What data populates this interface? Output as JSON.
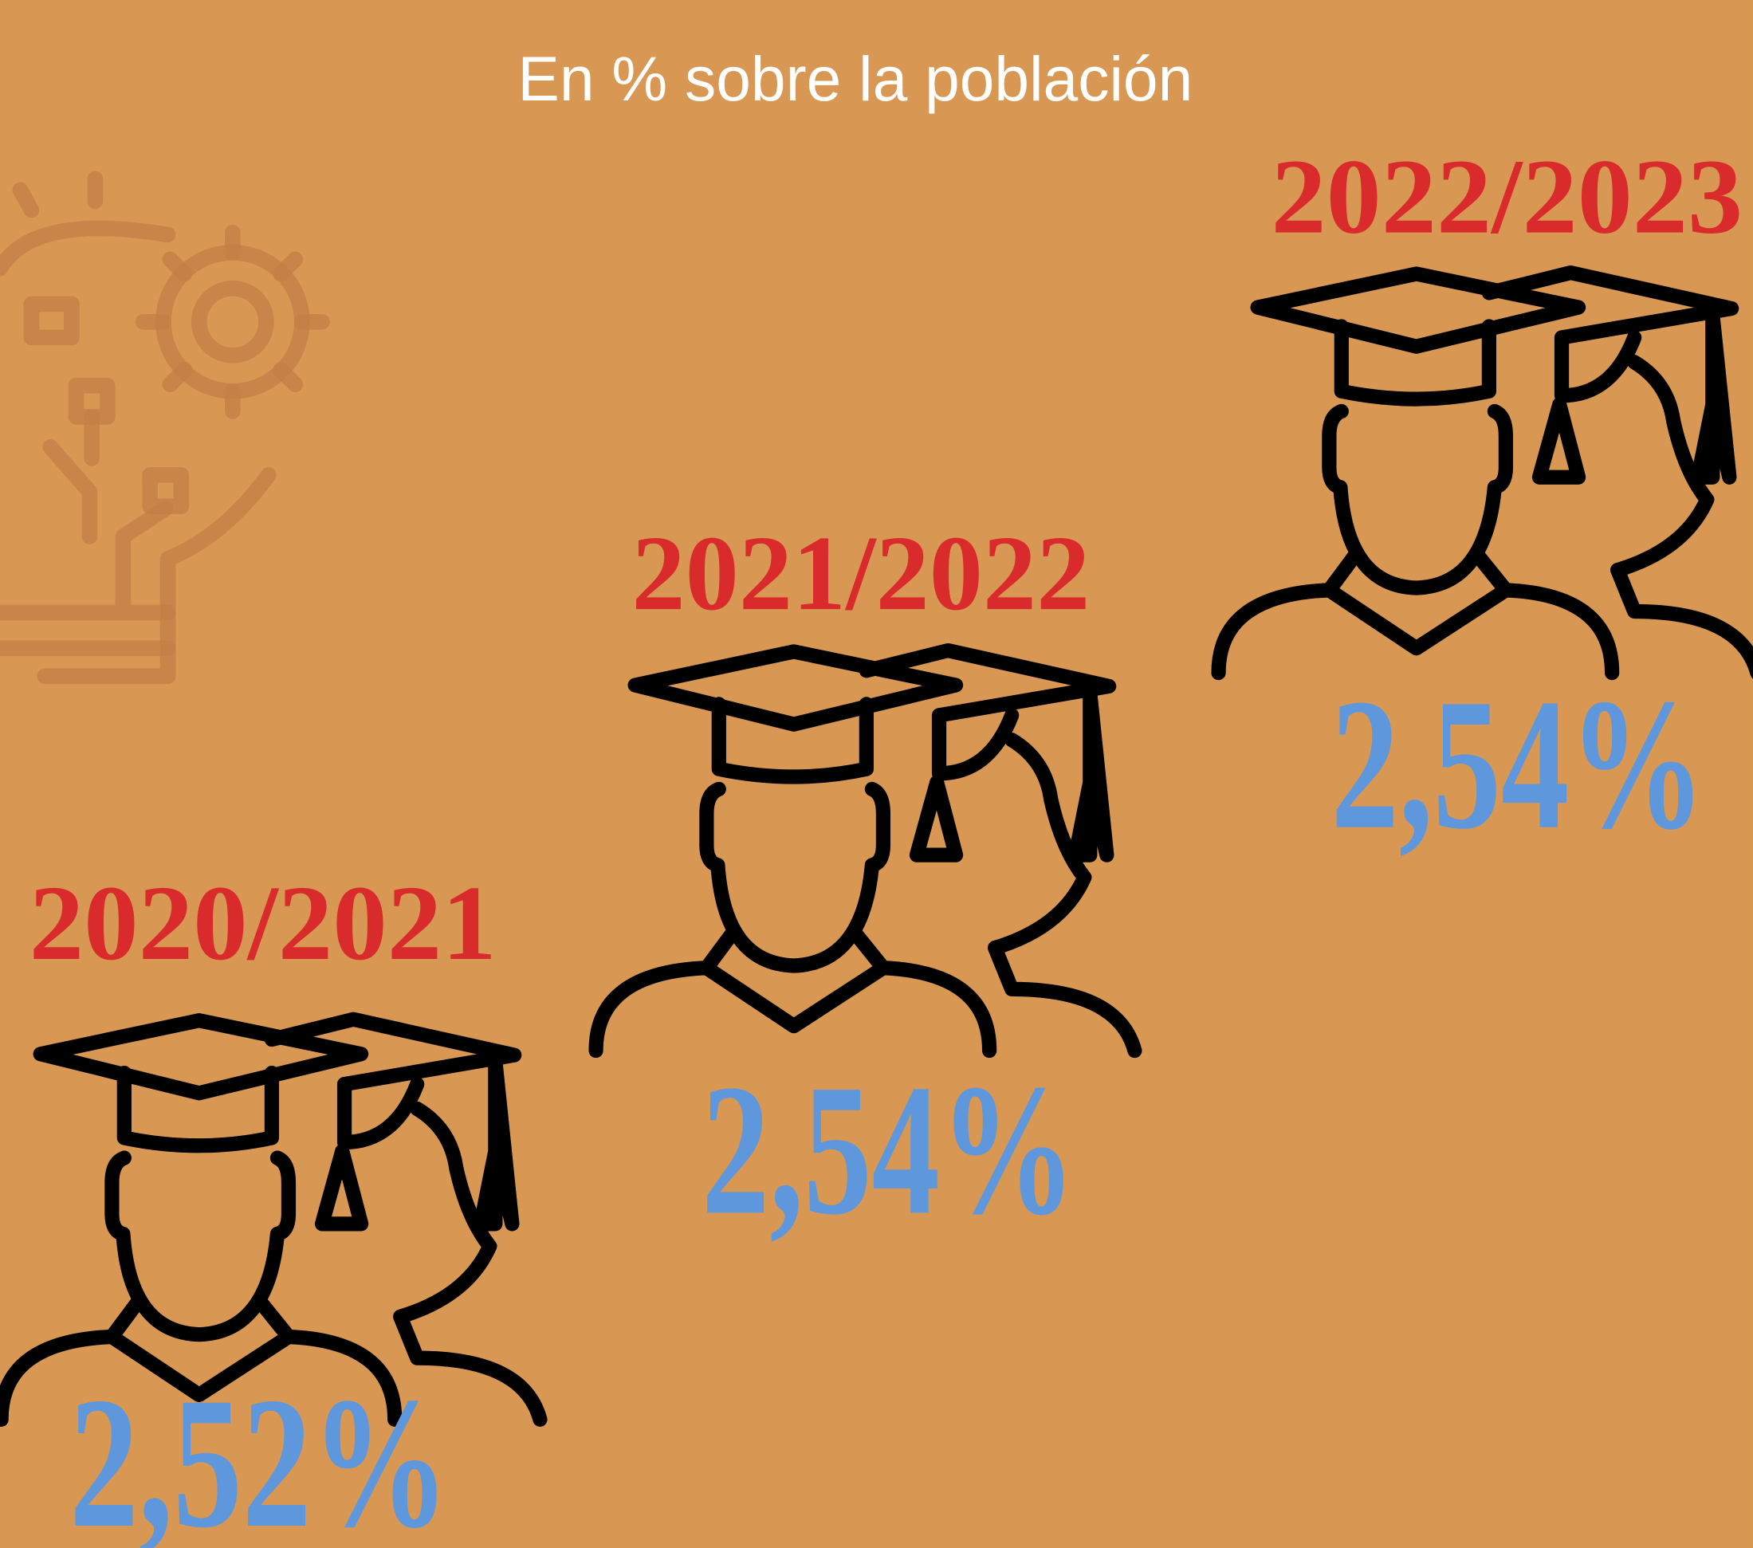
{
  "subtitle": "En % sobre la población",
  "items": [
    {
      "year": "2020/2021",
      "value": "2,52%"
    },
    {
      "year": "2021/2022",
      "value": "2,54%"
    },
    {
      "year": "2022/2023",
      "value": "2,54%"
    }
  ]
}
